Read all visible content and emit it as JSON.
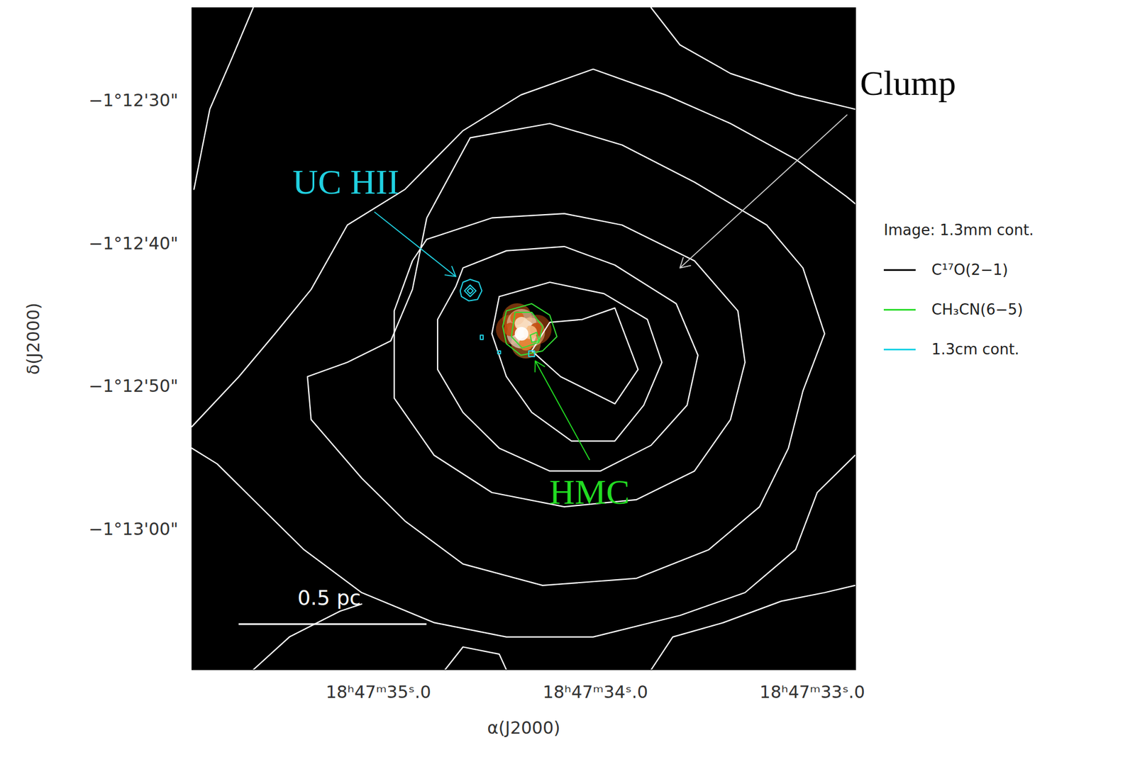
{
  "chart_data": {
    "type": "contour",
    "x_label": "α(J2000)",
    "y_label": "δ(J2000)",
    "xlim": [
      35.86,
      32.8
    ],
    "ylim": [
      -4389.8,
      -4343.5
    ],
    "xticks": [
      {
        "value": 35,
        "label": "18ʰ47ᵐ35ˢ.0"
      },
      {
        "value": 34,
        "label": "18ʰ47ᵐ34ˢ.0"
      },
      {
        "value": 33,
        "label": "18ʰ47ᵐ33ˢ.0"
      }
    ],
    "yticks": [
      {
        "value": -4350,
        "label": "−1°12'30\""
      },
      {
        "value": -4360,
        "label": "−1°12'40\""
      },
      {
        "value": -4370,
        "label": "−1°12'50\""
      },
      {
        "value": -4380,
        "label": "−1°13'00\""
      }
    ],
    "legend": "right",
    "image": {
      "name": "Image: 1.3mm cont.",
      "intensity_range": [
        0,
        1
      ],
      "pixels": [
        [
          34.39,
          -4366.0,
          0.4
        ],
        [
          34.27,
          -4366.0,
          0.4
        ],
        [
          34.36,
          -4365.2,
          0.5
        ],
        [
          34.32,
          -4367.0,
          0.6
        ],
        [
          34.3,
          -4366.2,
          0.8
        ],
        [
          34.34,
          -4365.6,
          0.9
        ],
        [
          34.34,
          -4366.3,
          1.0
        ]
      ]
    },
    "series": [
      {
        "name": "C¹⁷O(2−1)",
        "color": "#ffffff",
        "legend_color": "#000000",
        "contours": [
          [
            [
              34.06,
              -4365.3
            ],
            [
              33.91,
              -4364.5
            ],
            [
              33.803,
              -4368.8
            ],
            [
              33.91,
              -4371.2
            ],
            [
              34.16,
              -4369.3
            ],
            [
              34.293,
              -4367.5
            ],
            [
              34.21,
              -4365.5
            ],
            [
              34.06,
              -4365.3
            ]
          ],
          [
            [
              34.443,
              -4363.7
            ],
            [
              34.21,
              -4362.7
            ],
            [
              33.96,
              -4363.5
            ],
            [
              33.76,
              -4365.3
            ],
            [
              33.693,
              -4368.3
            ],
            [
              33.777,
              -4371.3
            ],
            [
              33.91,
              -4373.8
            ],
            [
              34.11,
              -4373.8
            ],
            [
              34.293,
              -4371.8
            ],
            [
              34.41,
              -4369.3
            ],
            [
              34.477,
              -4366.3
            ],
            [
              34.443,
              -4363.7
            ]
          ],
          [
            [
              34.61,
              -4361.7
            ],
            [
              34.41,
              -4360.5
            ],
            [
              34.143,
              -4360.2
            ],
            [
              33.91,
              -4361.5
            ],
            [
              33.627,
              -4364.2
            ],
            [
              33.527,
              -4367.8
            ],
            [
              33.577,
              -4371.3
            ],
            [
              33.743,
              -4374.1
            ],
            [
              33.977,
              -4375.9
            ],
            [
              34.21,
              -4375.9
            ],
            [
              34.443,
              -4374.3
            ],
            [
              34.61,
              -4371.8
            ],
            [
              34.727,
              -4368.8
            ],
            [
              34.727,
              -4365.3
            ],
            [
              34.643,
              -4363.0
            ],
            [
              34.61,
              -4361.7
            ]
          ],
          [
            [
              34.777,
              -4359.7
            ],
            [
              34.477,
              -4358.2
            ],
            [
              34.143,
              -4357.9
            ],
            [
              33.877,
              -4358.7
            ],
            [
              33.543,
              -4361.2
            ],
            [
              33.343,
              -4364.7
            ],
            [
              33.31,
              -4368.3
            ],
            [
              33.377,
              -4372.3
            ],
            [
              33.543,
              -4375.9
            ],
            [
              33.81,
              -4377.9
            ],
            [
              34.143,
              -4378.4
            ],
            [
              34.477,
              -4377.4
            ],
            [
              34.743,
              -4374.8
            ],
            [
              34.927,
              -4370.8
            ],
            [
              34.927,
              -4364.7
            ],
            [
              34.843,
              -4361.2
            ],
            [
              34.777,
              -4359.7
            ]
          ],
          [
            [
              34.577,
              -4352.6
            ],
            [
              34.21,
              -4351.6
            ],
            [
              33.877,
              -4353.1
            ],
            [
              33.543,
              -4355.7
            ],
            [
              33.21,
              -4358.7
            ],
            [
              33.043,
              -4361.7
            ],
            [
              32.943,
              -4366.3
            ],
            [
              33.043,
              -4370.3
            ],
            [
              33.11,
              -4374.3
            ],
            [
              33.243,
              -4378.4
            ],
            [
              33.477,
              -4381.4
            ],
            [
              33.81,
              -4383.4
            ],
            [
              34.243,
              -4383.9
            ],
            [
              34.61,
              -4382.4
            ],
            [
              34.877,
              -4379.4
            ],
            [
              35.077,
              -4376.4
            ],
            [
              35.31,
              -4372.3
            ],
            [
              35.327,
              -4369.3
            ],
            [
              35.143,
              -4368.3
            ],
            [
              34.943,
              -4366.8
            ],
            [
              34.843,
              -4363.2
            ],
            [
              34.777,
              -4358.2
            ],
            [
              34.577,
              -4352.6
            ]
          ],
          [
            [
              35.86,
              -4372.8
            ],
            [
              35.643,
              -4369.3
            ],
            [
              35.477,
              -4366.3
            ],
            [
              35.31,
              -4363.2
            ],
            [
              35.143,
              -4358.7
            ],
            [
              34.877,
              -4356.2
            ],
            [
              34.61,
              -4352.1
            ],
            [
              34.343,
              -4349.6
            ],
            [
              34.01,
              -4347.8
            ],
            [
              33.677,
              -4349.6
            ],
            [
              33.377,
              -4351.6
            ],
            [
              33.077,
              -4354.1
            ],
            [
              32.843,
              -4356.7
            ],
            [
              32.803,
              -4357.2
            ]
          ],
          [
            [
              32.803,
              -4374.8
            ],
            [
              32.977,
              -4377.4
            ],
            [
              33.077,
              -4381.4
            ],
            [
              33.31,
              -4384.4
            ],
            [
              33.61,
              -4386.0
            ],
            [
              34.01,
              -4387.5
            ],
            [
              34.41,
              -4387.5
            ],
            [
              34.743,
              -4386.5
            ],
            [
              35.077,
              -4384.4
            ],
            [
              35.343,
              -4381.4
            ],
            [
              35.577,
              -4377.9
            ],
            [
              35.743,
              -4375.4
            ],
            [
              35.86,
              -4374.3
            ]
          ],
          [
            [
              35.85,
              -4356.2
            ],
            [
              35.777,
              -4350.6
            ],
            [
              35.677,
              -4347.1
            ],
            [
              35.577,
              -4343.5
            ]
          ],
          [
            [
              33.743,
              -4343.5
            ],
            [
              33.61,
              -4346.1
            ],
            [
              33.377,
              -4348.1
            ],
            [
              33.077,
              -4349.6
            ],
            [
              32.803,
              -4350.6
            ]
          ],
          [
            [
              35.577,
              -4389.8
            ],
            [
              35.41,
              -4387.5
            ],
            [
              35.177,
              -4385.7
            ],
            [
              35.077,
              -4385.2
            ]
          ],
          [
            [
              34.693,
              -4389.8
            ],
            [
              34.61,
              -4388.2
            ],
            [
              34.443,
              -4388.7
            ],
            [
              34.41,
              -4389.8
            ]
          ],
          [
            [
              33.743,
              -4389.8
            ],
            [
              33.643,
              -4387.5
            ],
            [
              33.41,
              -4386.5
            ],
            [
              33.143,
              -4385.0
            ],
            [
              32.943,
              -4384.4
            ],
            [
              32.803,
              -4383.9
            ]
          ]
        ]
      },
      {
        "name": "CH₃CN(6−5)",
        "color": "#33dd33",
        "contours": [
          [
            [
              34.41,
              -4364.7
            ],
            [
              34.293,
              -4364.2
            ],
            [
              34.21,
              -4365.0
            ],
            [
              34.177,
              -4366.5
            ],
            [
              34.243,
              -4367.5
            ],
            [
              34.343,
              -4367.8
            ],
            [
              34.41,
              -4367.0
            ],
            [
              34.427,
              -4365.8
            ],
            [
              34.41,
              -4364.7
            ]
          ],
          [
            [
              34.37,
              -4364.8
            ],
            [
              34.293,
              -4364.8
            ],
            [
              34.243,
              -4365.8
            ],
            [
              34.26,
              -4366.9
            ],
            [
              34.337,
              -4367.3
            ],
            [
              34.387,
              -4366.5
            ],
            [
              34.37,
              -4364.8
            ]
          ],
          [
            [
              34.3,
              -4366.4
            ],
            [
              34.27,
              -4366.2
            ],
            [
              34.26,
              -4366.8
            ],
            [
              34.293,
              -4366.9
            ],
            [
              34.3,
              -4366.4
            ]
          ]
        ]
      },
      {
        "name": "1.3cm cont.",
        "color": "#22d3e6",
        "contours": [
          [
            [
              34.623,
              -4363.3
            ],
            [
              34.61,
              -4362.7
            ],
            [
              34.577,
              -4362.5
            ],
            [
              34.537,
              -4362.7
            ],
            [
              34.523,
              -4363.3
            ],
            [
              34.543,
              -4363.9
            ],
            [
              34.583,
              -4364.0
            ],
            [
              34.617,
              -4363.7
            ],
            [
              34.623,
              -4363.3
            ]
          ],
          [
            [
              34.603,
              -4363.3
            ],
            [
              34.577,
              -4362.9
            ],
            [
              34.55,
              -4363.3
            ],
            [
              34.577,
              -4363.7
            ],
            [
              34.603,
              -4363.3
            ]
          ],
          [
            [
              34.59,
              -4363.3
            ],
            [
              34.577,
              -4363.1
            ],
            [
              34.563,
              -4363.3
            ],
            [
              34.577,
              -4363.5
            ],
            [
              34.59,
              -4363.3
            ]
          ],
          [
            [
              34.53,
              -4366.4
            ],
            [
              34.517,
              -4366.4
            ],
            [
              34.517,
              -4366.7
            ],
            [
              34.53,
              -4366.7
            ],
            [
              34.53,
              -4366.4
            ]
          ],
          [
            [
              34.45,
              -4367.5
            ],
            [
              34.437,
              -4367.5
            ],
            [
              34.437,
              -4367.7
            ],
            [
              34.45,
              -4367.7
            ],
            [
              34.45,
              -4367.5
            ]
          ],
          [
            [
              34.307,
              -4367.5
            ],
            [
              34.28,
              -4367.5
            ],
            [
              34.28,
              -4367.9
            ],
            [
              34.307,
              -4367.9
            ],
            [
              34.307,
              -4367.5
            ]
          ]
        ]
      }
    ],
    "annotations": [
      {
        "text": "Clump",
        "color": "#000000",
        "x": 32.78,
        "y": -4348.8,
        "arrow_from": [
          32.84,
          -4351.0
        ],
        "arrow_to": [
          33.61,
          -4361.7
        ]
      },
      {
        "text": "UC HII",
        "color": "#20d0e0",
        "x": 35.15,
        "y": -4355.7,
        "arrow_from": [
          35.017,
          -4357.8
        ],
        "arrow_to": [
          34.643,
          -4362.3
        ]
      },
      {
        "text": "HMC",
        "color": "#22dd22",
        "x": 34.027,
        "y": -4377.4,
        "arrow_from": [
          34.027,
          -4375.1
        ],
        "arrow_to": [
          34.277,
          -4368.2
        ]
      }
    ],
    "scale_bar": {
      "label": "0.5 pc",
      "x": [
        35.643,
        34.777
      ],
      "y": -4386.6,
      "label_x": 35.227,
      "label_y": -4384.8
    }
  }
}
